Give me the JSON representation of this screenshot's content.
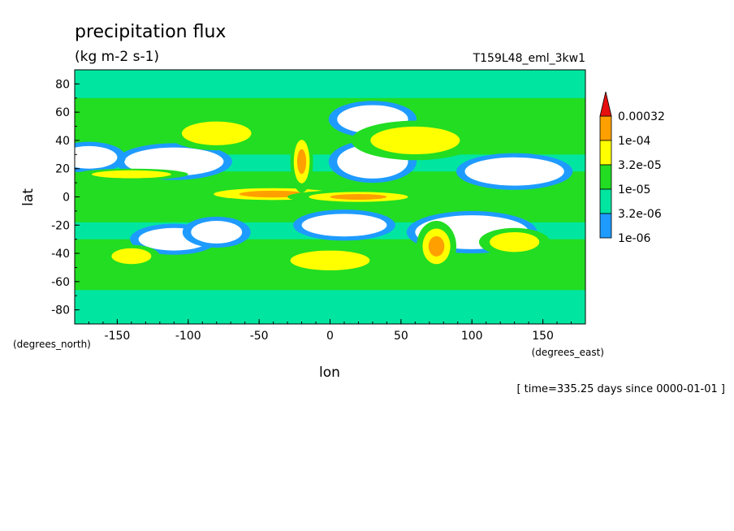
{
  "chart_data": {
    "type": "heatmap",
    "title": "precipitation flux",
    "units": "(kg m-2 s-1)",
    "run_label": "T159L48_eml_3kw1",
    "xlabel": "lon",
    "ylabel": "lat",
    "x_units": "(degrees_east)",
    "y_units": "(degrees_north)",
    "time_label": "[ time=335.25 days since 0000-01-01 ]",
    "xlim": [
      -180,
      180
    ],
    "ylim": [
      -90,
      90
    ],
    "x_ticks": [
      -150,
      -100,
      -50,
      0,
      50,
      100,
      150
    ],
    "y_ticks": [
      -80,
      -60,
      -40,
      -20,
      0,
      20,
      40,
      60,
      80
    ],
    "x_tick_labels": [
      "-150",
      "-100",
      "-50",
      "0",
      "50",
      "100",
      "150"
    ],
    "y_tick_labels": [
      "-80",
      "-60",
      "-40",
      "-20",
      "0",
      "20",
      "40",
      "60",
      "80"
    ],
    "colorbar": {
      "levels": [
        "1e-06",
        "3.2e-06",
        "1e-05",
        "3.2e-05",
        "1e-04",
        "0.00032"
      ],
      "colors": [
        "#ffffff",
        "#1e9bff",
        "#00e6a0",
        "#22dd22",
        "#ffff00",
        "#ffa000",
        "#e61010"
      ]
    },
    "features": [
      {
        "kind": "band",
        "lat_center": 0,
        "lat_halfwidth": 18,
        "level": 3
      },
      {
        "kind": "band",
        "lat_center": 50,
        "lat_halfwidth": 20,
        "level": 3
      },
      {
        "kind": "band",
        "lat_center": -48,
        "lat_halfwidth": 18,
        "level": 3
      },
      {
        "kind": "blob",
        "lon": -40,
        "lat": 2,
        "rx": 60,
        "ry": 6,
        "level": 5
      },
      {
        "kind": "blob",
        "lon": 20,
        "lat": 0,
        "rx": 50,
        "ry": 5,
        "level": 5
      },
      {
        "kind": "blob",
        "lon": -140,
        "lat": 16,
        "rx": 40,
        "ry": 4,
        "level": 4
      },
      {
        "kind": "blob",
        "lon": -20,
        "lat": 25,
        "rx": 8,
        "ry": 22,
        "level": 5
      },
      {
        "kind": "blob",
        "lon": 75,
        "lat": -35,
        "rx": 14,
        "ry": 18,
        "level": 5
      },
      {
        "kind": "blob",
        "lon": -80,
        "lat": 45,
        "rx": 35,
        "ry": 12,
        "level": 4
      },
      {
        "kind": "blob",
        "lon": 60,
        "lat": 40,
        "rx": 45,
        "ry": 14,
        "level": 4
      },
      {
        "kind": "blob",
        "lon": 130,
        "lat": -32,
        "rx": 25,
        "ry": 10,
        "level": 4
      },
      {
        "kind": "blob",
        "lon": -140,
        "lat": -42,
        "rx": 20,
        "ry": 8,
        "level": 4
      },
      {
        "kind": "blob",
        "lon": 0,
        "lat": -45,
        "rx": 40,
        "ry": 10,
        "level": 4
      },
      {
        "kind": "dry",
        "lon": -110,
        "lat": 25,
        "rx": 35,
        "ry": 10
      },
      {
        "kind": "dry",
        "lon": 30,
        "lat": 25,
        "rx": 25,
        "ry": 12
      },
      {
        "kind": "dry",
        "lon": 130,
        "lat": 18,
        "rx": 35,
        "ry": 10
      },
      {
        "kind": "dry",
        "lon": -170,
        "lat": 28,
        "rx": 20,
        "ry": 8
      },
      {
        "kind": "dry",
        "lon": 100,
        "lat": -25,
        "rx": 40,
        "ry": 12
      },
      {
        "kind": "dry",
        "lon": 10,
        "lat": -20,
        "rx": 30,
        "ry": 8
      },
      {
        "kind": "dry",
        "lon": -110,
        "lat": -30,
        "rx": 25,
        "ry": 8
      },
      {
        "kind": "dry",
        "lon": -80,
        "lat": -25,
        "rx": 18,
        "ry": 8
      },
      {
        "kind": "dry",
        "lon": 30,
        "lat": 55,
        "rx": 25,
        "ry": 10
      }
    ]
  }
}
